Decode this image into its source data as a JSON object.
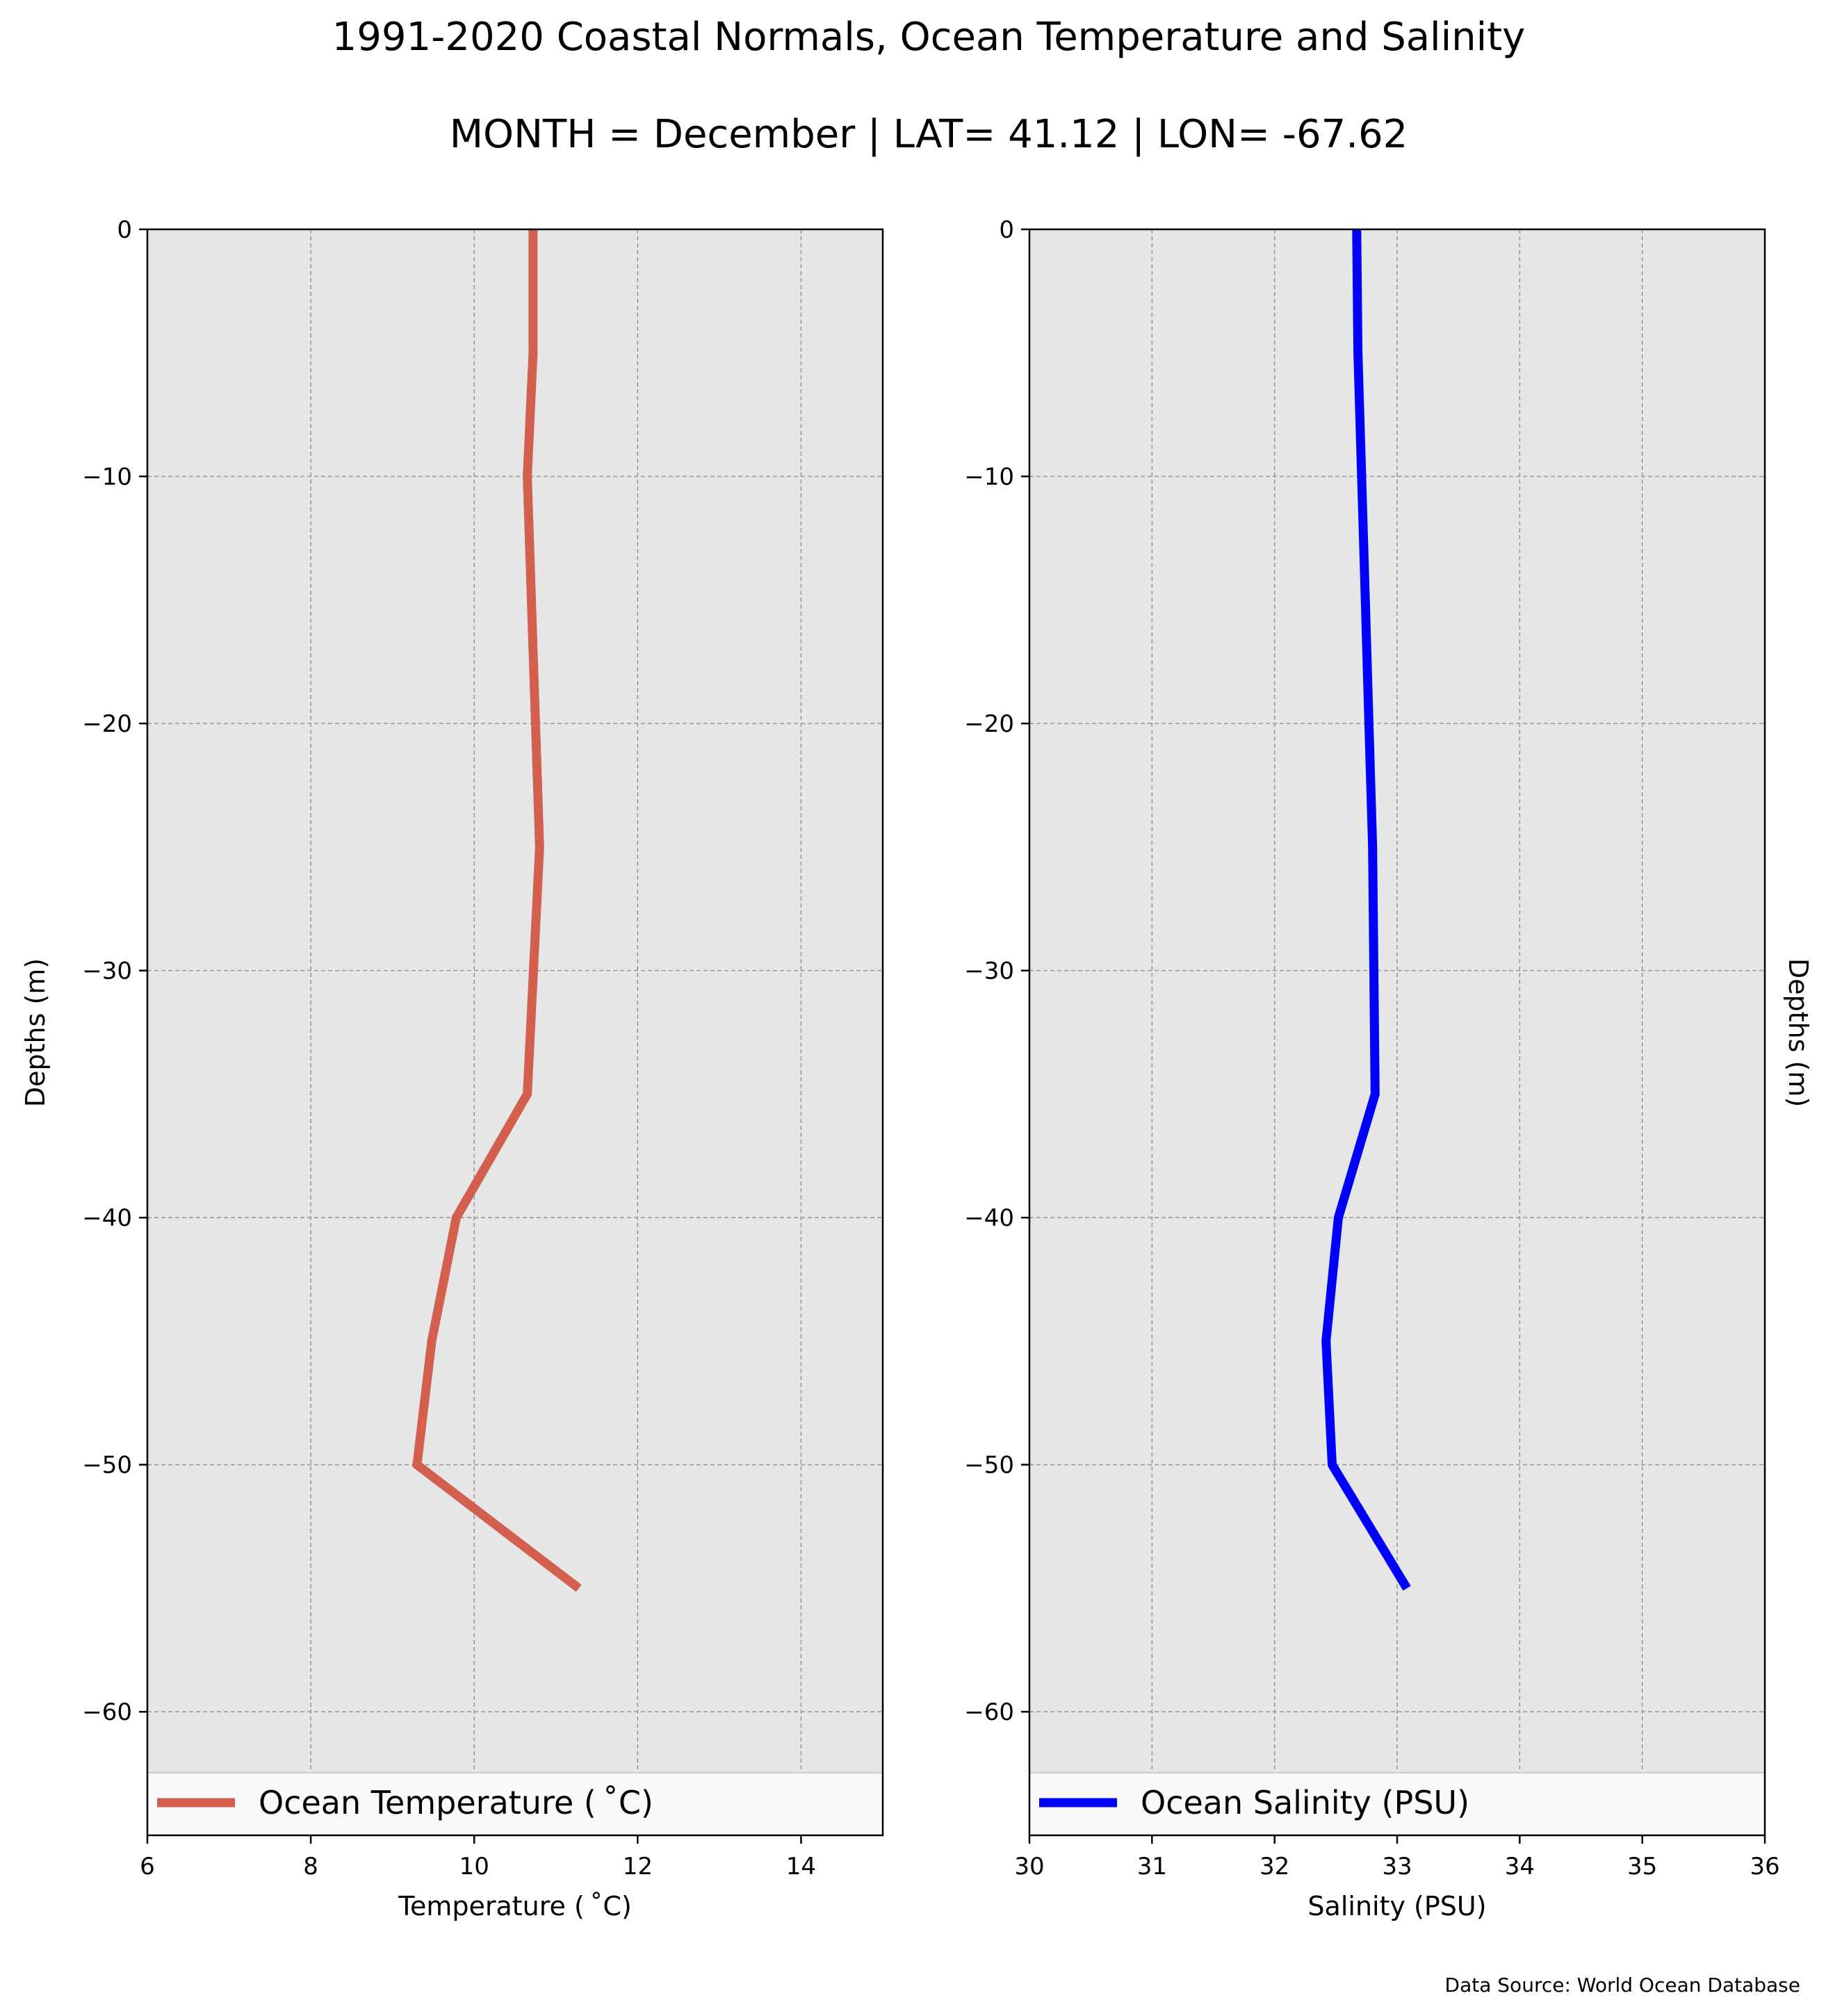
{
  "figure": {
    "title": "1991-2020 Coastal Normals, Ocean Temperature and Salinity",
    "subtitle": "MONTH = December | LAT= 41.12 | LON= -67.62",
    "footer": "Data Source: World Ocean Database"
  },
  "colors": {
    "axes_background": "#e6e6e6",
    "grid": "#9a9a9a",
    "temperature_line": "#d35f4f",
    "salinity_line": "#0000ff"
  },
  "chart_data": [
    {
      "type": "line",
      "xlabel": "Temperature ($^\\circ$C)",
      "xlabel_display": "Temperature ( ˚C)",
      "ylabel": "Depths (m)",
      "xlim": [
        6,
        15
      ],
      "ylim": [
        -65,
        0
      ],
      "xticks": [
        6,
        8,
        10,
        12,
        14
      ],
      "xtick_labels": [
        "6",
        "8",
        "10",
        "12",
        "14"
      ],
      "yticks": [
        0,
        -10,
        -20,
        -30,
        -40,
        -50,
        -60
      ],
      "ytick_labels": [
        "0",
        "−10",
        "−20",
        "−30",
        "−40",
        "−50",
        "−60"
      ],
      "grid": true,
      "legend_position": "lower-center",
      "series": [
        {
          "name": "Ocean Temperature ($^\\circ$C)",
          "display_name": "Ocean Temperature ( ˚C)",
          "color": "#d35f4f",
          "x": [
            10.72,
            10.72,
            10.65,
            10.7,
            10.75,
            10.8,
            10.65,
            9.78,
            9.48,
            9.3,
            11.28
          ],
          "y": [
            0,
            -5,
            -10,
            -15,
            -20,
            -25,
            -35,
            -40,
            -45,
            -50,
            -55
          ]
        }
      ]
    },
    {
      "type": "line",
      "xlabel": "Salinity (PSU)",
      "ylabel": "Depths (m)",
      "xlim": [
        30,
        36
      ],
      "ylim": [
        -65,
        0
      ],
      "xticks": [
        30,
        31,
        32,
        33,
        34,
        35,
        36
      ],
      "xtick_labels": [
        "30",
        "31",
        "32",
        "33",
        "34",
        "35",
        "36"
      ],
      "yticks": [
        0,
        -10,
        -20,
        -30,
        -40,
        -50,
        -60
      ],
      "ytick_labels": [
        "0",
        "−10",
        "−20",
        "−30",
        "−40",
        "−50",
        "−60"
      ],
      "grid": true,
      "legend_position": "lower-center",
      "series": [
        {
          "name": "Ocean Salinity (PSU)",
          "color": "#0000ff",
          "x": [
            32.67,
            32.68,
            32.71,
            32.74,
            32.77,
            32.8,
            32.82,
            32.52,
            32.42,
            32.47,
            33.08
          ],
          "y": [
            0,
            -5,
            -10,
            -15,
            -20,
            -25,
            -35,
            -40,
            -45,
            -50,
            -55
          ]
        }
      ]
    }
  ]
}
